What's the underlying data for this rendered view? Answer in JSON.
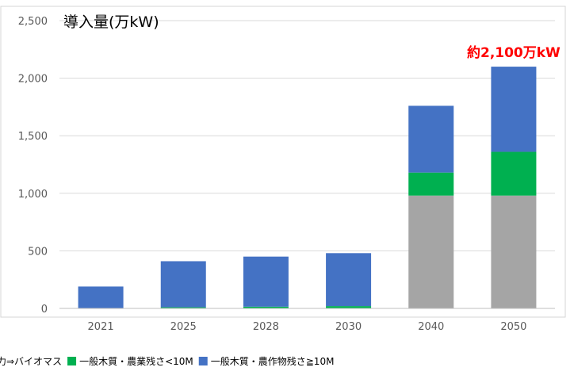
{
  "chart_data": {
    "type": "bar",
    "stacked": true,
    "title": "導入量(万kW)",
    "categories": [
      "2021",
      "2025",
      "2028",
      "2030",
      "2040",
      "2050"
    ],
    "series": [
      {
        "name": "非効率石炭火力⇒バイオマス",
        "color": "#a5a5a5",
        "values": [
          0,
          0,
          0,
          0,
          980,
          980
        ]
      },
      {
        "name": "一般木質・農業残さ<10M",
        "color": "#00b050",
        "values": [
          0,
          10,
          15,
          20,
          200,
          380
        ]
      },
      {
        "name": "一般木質・農作物残さ≧10M",
        "color": "#4472c4",
        "values": [
          190,
          400,
          435,
          460,
          580,
          740
        ]
      }
    ],
    "ylim": [
      0,
      2500
    ],
    "yticks": [
      0,
      500,
      1000,
      1500,
      2000,
      2500
    ],
    "ytick_labels": [
      "0",
      "500",
      "1,000",
      "1,500",
      "2,000",
      "2,500"
    ],
    "grid": true,
    "legend_position": "bottom",
    "annotation": {
      "text": "約2,100万kW",
      "category": "2050",
      "color": "#ff0000"
    }
  }
}
